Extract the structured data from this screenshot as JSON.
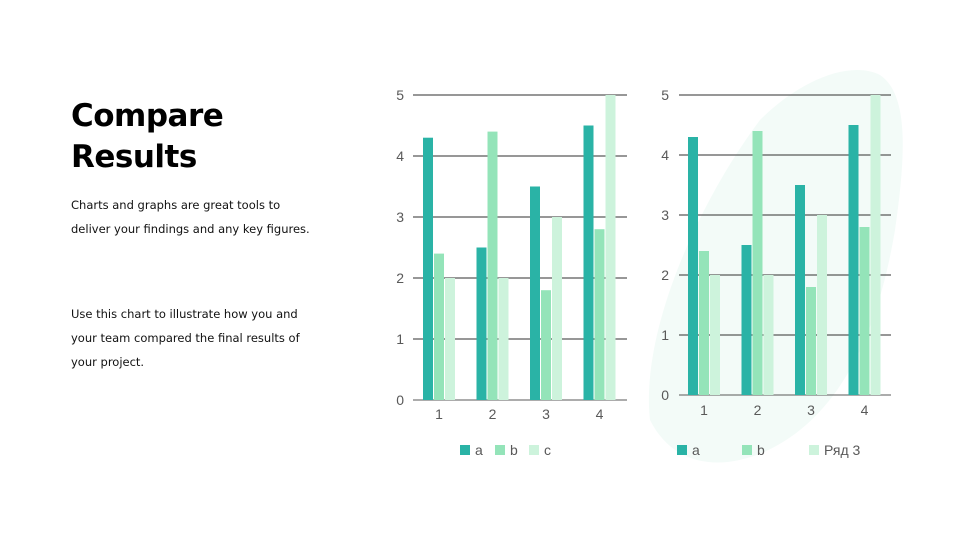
{
  "slide": {
    "title": "Compare Results",
    "paragraph_1": "Charts and graphs are great tools to deliver your findings and any key figures.",
    "paragraph_2": "Use this chart to illustrate how you and your team compared the final results of your project."
  },
  "colors": {
    "series_a": "#2ab3a6",
    "series_b": "#94e4b9",
    "series_c": "#cdf3dc",
    "gridline": "#595959",
    "decoration": "#f2fbf8"
  },
  "chart_data": [
    {
      "type": "bar",
      "categories": [
        "1",
        "2",
        "3",
        "4"
      ],
      "series": [
        {
          "name": "a",
          "values": [
            4.3,
            2.5,
            3.5,
            4.5
          ]
        },
        {
          "name": "b",
          "values": [
            2.4,
            4.4,
            1.8,
            2.8
          ]
        },
        {
          "name": "c",
          "values": [
            2.0,
            2.0,
            3.0,
            5.0
          ]
        }
      ],
      "ylim": [
        0,
        5
      ],
      "yticks": [
        "0",
        "1",
        "2",
        "3",
        "4",
        "5"
      ],
      "grid": true,
      "legend": "bottom"
    },
    {
      "type": "bar",
      "categories": [
        "1",
        "2",
        "3",
        "4"
      ],
      "series": [
        {
          "name": "a",
          "values": [
            4.3,
            2.5,
            3.5,
            4.5
          ]
        },
        {
          "name": "b",
          "values": [
            2.4,
            4.4,
            1.8,
            2.8
          ]
        },
        {
          "name": "Ряд 3",
          "values": [
            2.0,
            2.0,
            3.0,
            5.0
          ]
        }
      ],
      "ylim": [
        0,
        5
      ],
      "yticks": [
        "0",
        "1",
        "2",
        "3",
        "4",
        "5"
      ],
      "grid": true,
      "legend": "bottom"
    }
  ]
}
